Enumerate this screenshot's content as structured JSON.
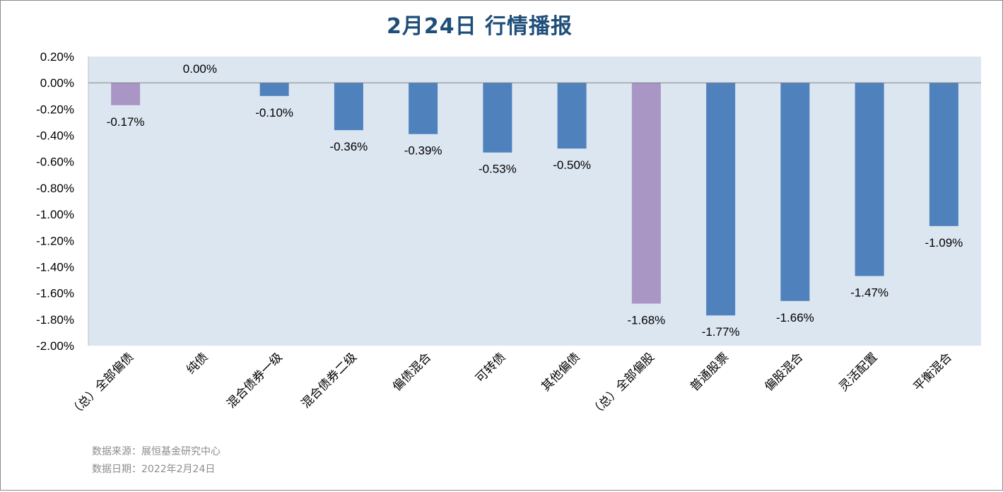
{
  "chart_data": {
    "type": "bar",
    "title": "2月24日  行情播报",
    "categories": [
      "（总）全部偏债",
      "纯债",
      "混合债券一级",
      "混合债券二级",
      "偏债混合",
      "可转债",
      "其他偏债",
      "（总）全部偏股",
      "普通股票",
      "偏股混合",
      "灵活配置",
      "平衡混合"
    ],
    "values": [
      -0.17,
      0.0,
      -0.1,
      -0.36,
      -0.39,
      -0.53,
      -0.5,
      -1.68,
      -1.77,
      -1.66,
      -1.47,
      -1.09
    ],
    "data_labels": [
      "-0.17%",
      "0.00%",
      "-0.10%",
      "-0.36%",
      "-0.39%",
      "-0.53%",
      "-0.50%",
      "-1.68%",
      "-1.77%",
      "-1.66%",
      "-1.47%",
      "-1.09%"
    ],
    "highlight_indices": [
      0,
      7
    ],
    "ylim": [
      -2.0,
      0.2
    ],
    "yticks": [
      0.2,
      0.0,
      -0.2,
      -0.4,
      -0.6,
      -0.8,
      -1.0,
      -1.2,
      -1.4,
      -1.6,
      -1.8,
      -2.0
    ],
    "ytick_labels": [
      "0.20%",
      "0.00%",
      "-0.20%",
      "-0.40%",
      "-0.60%",
      "-0.80%",
      "-1.00%",
      "-1.20%",
      "-1.40%",
      "-1.60%",
      "-1.80%",
      "-2.00%"
    ],
    "xlabel": "",
    "ylabel": "",
    "grid": false,
    "legend": "none",
    "colors": {
      "bar": "#4f81bd",
      "highlight": "#a996c4",
      "plot_bg": "#dce6f1",
      "title": "#1f4e79",
      "zero_line": "#7f7f7f"
    }
  },
  "footer": {
    "source": "数据来源：展恒基金研究中心",
    "date": "数据日期：2022年2月24日"
  }
}
